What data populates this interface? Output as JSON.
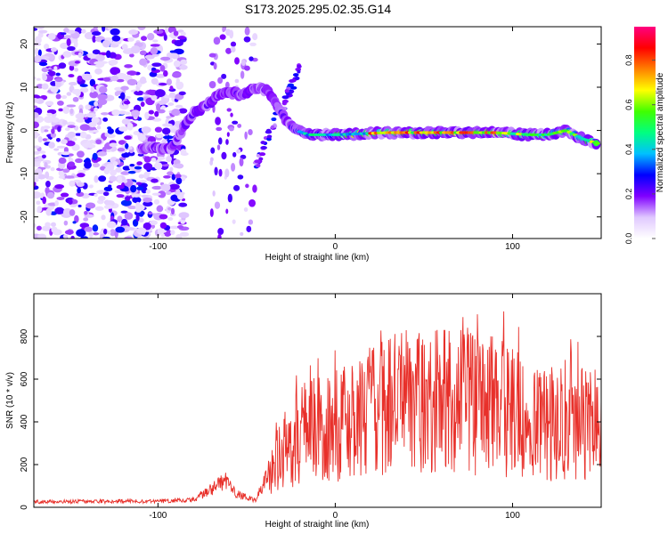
{
  "title": "S173.2025.295.02.35.G14",
  "chart_data": [
    {
      "type": "heatmap",
      "xlabel": "Height of straight line (km)",
      "ylabel": "Frequency (Hz)",
      "xlim": [
        -170,
        150
      ],
      "ylim": [
        -25,
        24
      ],
      "xticks": [
        -100,
        0,
        100
      ],
      "yticks": [
        -20,
        -10,
        0,
        10,
        20
      ],
      "track": [
        {
          "x": -110,
          "f": -4
        },
        {
          "x": -100,
          "f": -4
        },
        {
          "x": -92,
          "f": -4
        },
        {
          "x": -85,
          "f": 1
        },
        {
          "x": -80,
          "f": 4
        },
        {
          "x": -72,
          "f": 6
        },
        {
          "x": -66,
          "f": 8
        },
        {
          "x": -60,
          "f": 9
        },
        {
          "x": -52,
          "f": 8
        },
        {
          "x": -45,
          "f": 10
        },
        {
          "x": -38,
          "f": 9
        },
        {
          "x": -33,
          "f": 6
        },
        {
          "x": -27,
          "f": 2
        },
        {
          "x": -22,
          "f": 0
        },
        {
          "x": -15,
          "f": -1
        },
        {
          "x": 0,
          "f": -1
        },
        {
          "x": 30,
          "f": -0.5
        },
        {
          "x": 60,
          "f": -0.5
        },
        {
          "x": 90,
          "f": -0.5
        },
        {
          "x": 110,
          "f": -1
        },
        {
          "x": 120,
          "f": -1
        },
        {
          "x": 130,
          "f": 0
        },
        {
          "x": 140,
          "f": -2
        },
        {
          "x": 148,
          "f": -3
        }
      ],
      "colorbar": {
        "label": "Normalized spectral amplitude",
        "range": [
          0,
          0.95
        ],
        "ticks": [
          "0.0",
          "0.2",
          "0.4",
          "0.6",
          "0.8"
        ],
        "colors": [
          "#ffffff",
          "#e0c8ff",
          "#8000ff",
          "#0000ff",
          "#00c0ff",
          "#00ff80",
          "#40ff00",
          "#ffff00",
          "#ff8000",
          "#ff0000",
          "#ff0080"
        ]
      }
    },
    {
      "type": "line",
      "xlabel": "Height of straight line (km)",
      "ylabel": "SNR (10 * v/v)",
      "xlim": [
        -170,
        150
      ],
      "ylim": [
        0,
        1000
      ],
      "xticks": [
        -100,
        0,
        100
      ],
      "yticks": [
        0,
        200,
        400,
        600,
        800
      ],
      "color": "#e8302a",
      "envelope_x": [
        -170,
        -100,
        -80,
        -70,
        -62,
        -56,
        -45,
        -38,
        -30,
        -22,
        -15,
        -5,
        10,
        30,
        60,
        90,
        115,
        130,
        150
      ],
      "envelope_y": [
        25,
        28,
        35,
        80,
        120,
        60,
        30,
        150,
        240,
        300,
        330,
        340,
        380,
        450,
        470,
        450,
        350,
        380,
        350
      ]
    }
  ]
}
